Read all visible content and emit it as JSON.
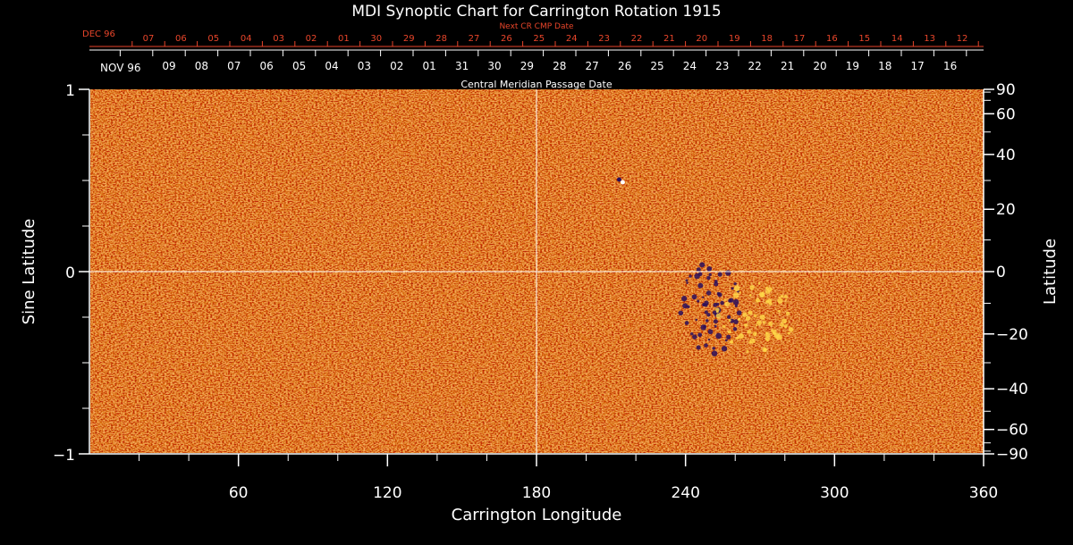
{
  "title": "MDI Synoptic Chart for Carrington Rotation 1915",
  "top_axis_red": {
    "label": "Next CR CMP Date",
    "month_label": "DEC 96",
    "ticks": [
      "07",
      "06",
      "05",
      "04",
      "03",
      "02",
      "01",
      "30",
      "29",
      "28",
      "27",
      "26",
      "25",
      "24",
      "23",
      "22",
      "21",
      "20",
      "19",
      "18",
      "17",
      "16",
      "15",
      "14",
      "13",
      "12"
    ]
  },
  "top_axis_white": {
    "month_label": "NOV 96",
    "label": "Central Meridian Passage Date",
    "ticks": [
      "09",
      "08",
      "07",
      "06",
      "05",
      "04",
      "03",
      "02",
      "01",
      "31",
      "30",
      "29",
      "28",
      "27",
      "26",
      "25",
      "24",
      "23",
      "22",
      "21",
      "20",
      "19",
      "18",
      "17",
      "16"
    ]
  },
  "colors": {
    "background": "#000000",
    "map_base": "#f05a12",
    "bright": "#ffd84a",
    "dark": "#2a0e5a",
    "axis": "#ffffff",
    "red_axis": "#e8452a"
  },
  "chart_data": {
    "type": "heatmap",
    "title": "MDI Synoptic Chart for Carrington Rotation 1915",
    "xlabel": "Carrington Longitude",
    "ylabel_left": "Sine Latitude",
    "ylabel_right": "Latitude",
    "xlim": [
      0,
      360
    ],
    "ylim": [
      -1,
      1
    ],
    "x_ticks": [
      60,
      120,
      180,
      240,
      300,
      360
    ],
    "y_ticks_left": [
      -1,
      0,
      1
    ],
    "y_ticks_right": [
      90,
      60,
      40,
      20,
      0,
      -20,
      -40,
      -60,
      -90
    ],
    "y_ticks_right_labels": [
      "90",
      "60",
      "40",
      "20",
      "0",
      "−20",
      "−40",
      "−60",
      "−90"
    ],
    "y_ticks_left_labels": [
      "−1",
      "0",
      "1"
    ],
    "guide_lines": {
      "longitude": 180,
      "sine_latitude": 0
    },
    "features": [
      {
        "kind": "negative-polarity region",
        "longitude": 250,
        "sine_latitude": -0.2
      },
      {
        "kind": "positive-polarity region",
        "longitude": 268,
        "sine_latitude": -0.25
      },
      {
        "kind": "small bipole",
        "longitude": 214,
        "sine_latitude": 0.5
      }
    ]
  }
}
